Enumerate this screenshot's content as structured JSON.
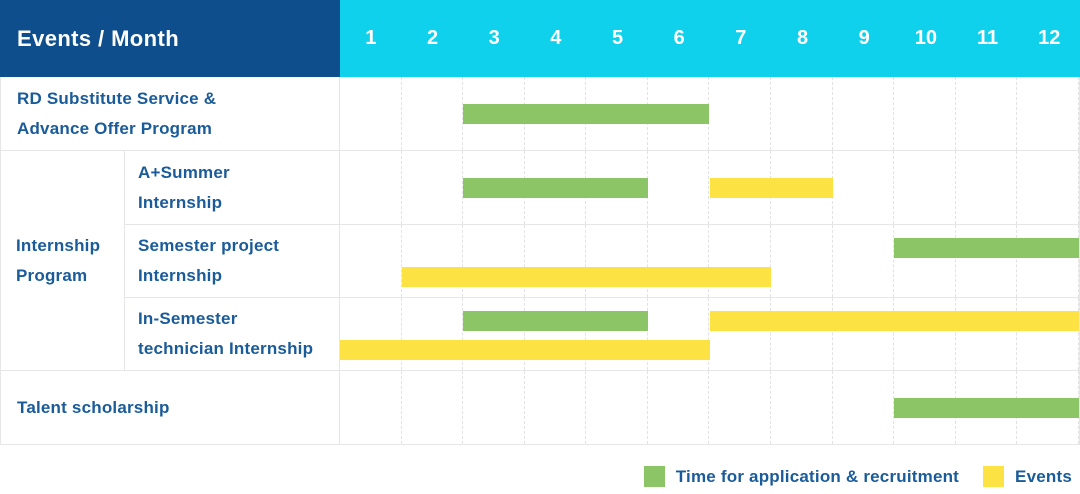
{
  "colors": {
    "header_bg": "#0f4e8c",
    "month_header_bg": "#10d1ec",
    "label_text": "#1a5b99",
    "recruitment": "#8cc566",
    "events": "#fde244"
  },
  "chart_data": {
    "type": "bar",
    "subtype": "gantt-table",
    "title": "Events / Month",
    "x_categories": [
      "1",
      "2",
      "3",
      "4",
      "5",
      "6",
      "7",
      "8",
      "9",
      "10",
      "11",
      "12"
    ],
    "x_range": [
      1,
      12
    ],
    "grid": "dashed-vertical-month-lines",
    "legend_position": "bottom-right",
    "sections": [
      {
        "group_label": null,
        "rows": [
          {
            "label": "RD Substitute Service & Advance Offer Program",
            "label_lines": [
              "RD Substitute Service &",
              "Advance Offer Program"
            ],
            "lines": 1,
            "bars": [
              {
                "series": "recruitment",
                "start_month": 3,
                "end_month": 6
              }
            ]
          }
        ]
      },
      {
        "group_label": "Internship Program",
        "group_label_lines": [
          "Internship",
          "Program"
        ],
        "rows": [
          {
            "label": "A+Summer Internship",
            "label_lines": [
              "A+Summer",
              "Internship"
            ],
            "lines": 1,
            "bars": [
              {
                "series": "recruitment",
                "start_month": 3,
                "end_month": 5
              },
              {
                "series": "events",
                "start_month": 7,
                "end_month": 8
              }
            ]
          },
          {
            "label": "Semester project Internship",
            "label_lines": [
              "Semester project",
              "Internship"
            ],
            "lines": 2,
            "bars": [
              {
                "series": "recruitment",
                "start_month": 10,
                "end_month": 12,
                "line": 1
              },
              {
                "series": "events",
                "start_month": 2,
                "end_month": 7,
                "line": 2
              }
            ]
          },
          {
            "label": "In-Semester technician Internship",
            "label_lines": [
              "In-Semester",
              "technician Internship"
            ],
            "lines": 2,
            "bars": [
              {
                "series": "recruitment",
                "start_month": 3,
                "end_month": 5,
                "line": 1
              },
              {
                "series": "events",
                "start_month": 7,
                "end_month": 12,
                "line": 1
              },
              {
                "series": "events",
                "start_month": 1,
                "end_month": 6,
                "line": 2
              }
            ]
          }
        ]
      },
      {
        "group_label": null,
        "rows": [
          {
            "label": "Talent scholarship",
            "label_lines": [
              "Talent scholarship"
            ],
            "lines": 1,
            "bars": [
              {
                "series": "recruitment",
                "start_month": 10,
                "end_month": 12
              }
            ]
          }
        ]
      }
    ],
    "legend": [
      {
        "series": "recruitment",
        "label": "Time for application & recruitment",
        "color": "#8cc566"
      },
      {
        "series": "events",
        "label": "Events",
        "color": "#fde244"
      }
    ]
  }
}
